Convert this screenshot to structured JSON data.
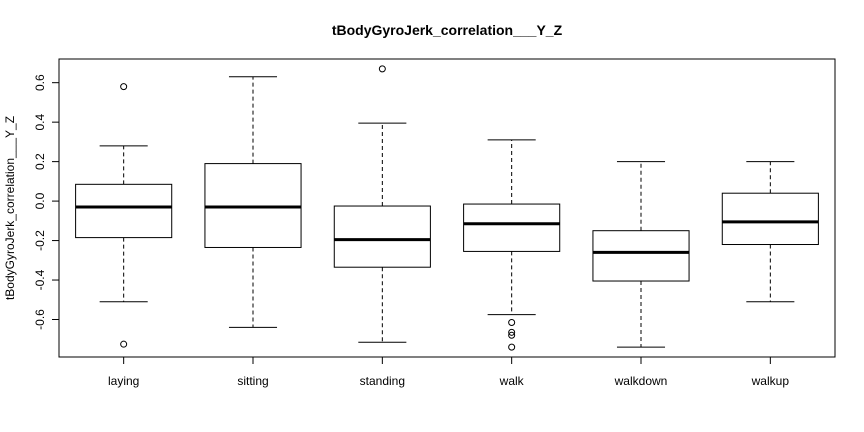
{
  "chart_data": {
    "type": "boxplot",
    "title": "tBodyGyroJerk_correlation___Y_Z",
    "xlabel": "",
    "ylabel": "tBodyGyroJerk_correlation___Y_Z",
    "ylim": [
      -0.79,
      0.72
    ],
    "yticks": [
      -0.6,
      -0.4,
      -0.2,
      0.0,
      0.2,
      0.4,
      0.6
    ],
    "ytick_labels": [
      "-0.6",
      "-0.4",
      "-0.2",
      "0.0",
      "0.2",
      "0.4",
      "0.6"
    ],
    "categories": [
      "laying",
      "sitting",
      "standing",
      "walk",
      "walkdown",
      "walkup"
    ],
    "boxes": [
      {
        "category": "laying",
        "whisker_low": -0.51,
        "q1": -0.185,
        "median": -0.03,
        "q3": 0.085,
        "whisker_high": 0.28,
        "outliers": [
          0.58,
          -0.725
        ]
      },
      {
        "category": "sitting",
        "whisker_low": -0.64,
        "q1": -0.235,
        "median": -0.03,
        "q3": 0.19,
        "whisker_high": 0.63,
        "outliers": []
      },
      {
        "category": "standing",
        "whisker_low": -0.715,
        "q1": -0.335,
        "median": -0.195,
        "q3": -0.025,
        "whisker_high": 0.395,
        "outliers": [
          0.67
        ]
      },
      {
        "category": "walk",
        "whisker_low": -0.575,
        "q1": -0.255,
        "median": -0.115,
        "q3": -0.015,
        "whisker_high": 0.31,
        "outliers": [
          -0.615,
          -0.665,
          -0.68,
          -0.74
        ]
      },
      {
        "category": "walkdown",
        "whisker_low": -0.74,
        "q1": -0.405,
        "median": -0.26,
        "q3": -0.15,
        "whisker_high": 0.2,
        "outliers": []
      },
      {
        "category": "walkup",
        "whisker_low": -0.51,
        "q1": -0.22,
        "median": -0.105,
        "q3": 0.04,
        "whisker_high": 0.2,
        "outliers": []
      }
    ],
    "grid": false,
    "colors": {
      "stroke": "#000000",
      "box_fill": "#ffffff",
      "background": "#ffffff"
    }
  }
}
